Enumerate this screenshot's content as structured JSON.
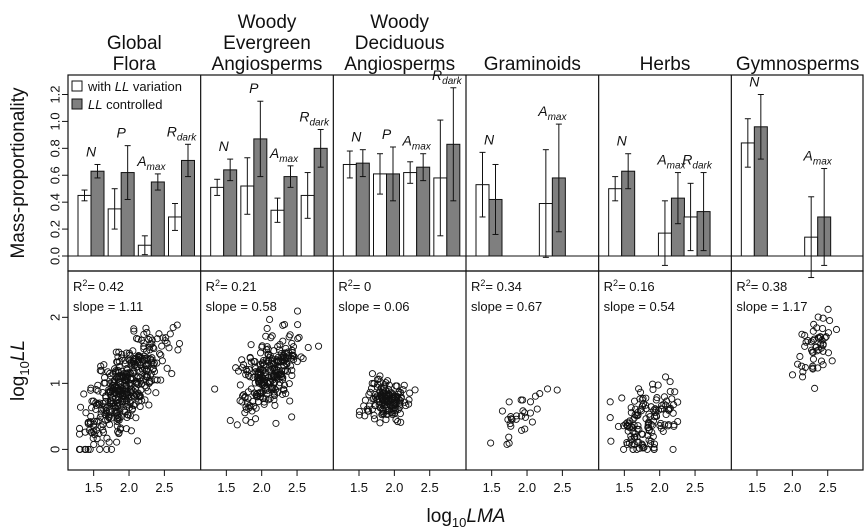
{
  "chart_data": {
    "type": "bar",
    "y_axis_top_label": "Mass-proportionality",
    "y_axis_bottom_label": {
      "base": "log",
      "sub": "10",
      "main": "LL"
    },
    "x_axis_label": {
      "base": "log",
      "sub": "10",
      "main": "LMA"
    },
    "legend": [
      {
        "prefix": "with ",
        "italic": "LL",
        "suffix": " variation",
        "fill": "#ffffff"
      },
      {
        "prefix": "",
        "italic": "LL",
        "suffix": " controlled",
        "fill": "#7f7f7f"
      }
    ],
    "top_y_ticks": [
      "0.0",
      "0.2",
      "0.4",
      "0.6",
      "0.8",
      "1.0",
      "1.2"
    ],
    "top_ylim": [
      0,
      1.33
    ],
    "bottom_y_ticks": [
      "0",
      "1",
      "2"
    ],
    "bottom_ylim": [
      -0.1,
      2.55
    ],
    "x_ticks": [
      "1.5",
      "2.0",
      "2.5"
    ],
    "xlim": [
      1.25,
      2.9
    ],
    "panels": [
      {
        "title": [
          "Global",
          "Flora"
        ],
        "bars": [
          {
            "label": "N",
            "sub": "",
            "with": 0.45,
            "with_err": 0.04,
            "controlled": 0.63,
            "controlled_err": 0.05
          },
          {
            "label": "P",
            "sub": "",
            "with": 0.35,
            "with_err": 0.15,
            "controlled": 0.62,
            "controlled_err": 0.2
          },
          {
            "label": "A",
            "sub": "max",
            "with": 0.08,
            "with_err": 0.07,
            "controlled": 0.55,
            "controlled_err": 0.06
          },
          {
            "label": "R",
            "sub": "dark",
            "with": 0.29,
            "with_err": 0.1,
            "controlled": 0.71,
            "controlled_err": 0.12
          }
        ],
        "r2": "0.42",
        "slope": "1.11",
        "scatter": {
          "n": 420,
          "mx": 1.92,
          "sx": 0.28,
          "slope": 1.11,
          "intercept": -1.22,
          "noise": 0.3
        }
      },
      {
        "title": [
          "Woody",
          "Evergreen",
          "Angiosperms"
        ],
        "bars": [
          {
            "label": "N",
            "sub": "",
            "with": 0.51,
            "with_err": 0.06,
            "controlled": 0.64,
            "controlled_err": 0.08
          },
          {
            "label": "P",
            "sub": "",
            "with": 0.52,
            "with_err": 0.21,
            "controlled": 0.87,
            "controlled_err": 0.28
          },
          {
            "label": "A",
            "sub": "max",
            "with": 0.34,
            "with_err": 0.09,
            "controlled": 0.59,
            "controlled_err": 0.08
          },
          {
            "label": "R",
            "sub": "dark",
            "with": 0.45,
            "with_err": 0.17,
            "controlled": 0.8,
            "controlled_err": 0.14
          }
        ],
        "r2": "0.21",
        "slope": "0.58",
        "scatter": {
          "n": 260,
          "mx": 2.1,
          "sx": 0.22,
          "slope": 0.58,
          "intercept": -0.05,
          "noise": 0.27
        }
      },
      {
        "title": [
          "Woody",
          "Deciduous",
          "Angiosperms"
        ],
        "bars": [
          {
            "label": "N",
            "sub": "",
            "with": 0.68,
            "with_err": 0.1,
            "controlled": 0.69,
            "controlled_err": 0.1
          },
          {
            "label": "P",
            "sub": "",
            "with": 0.61,
            "with_err": 0.15,
            "controlled": 0.61,
            "controlled_err": 0.2
          },
          {
            "label": "A",
            "sub": "max",
            "with": 0.62,
            "with_err": 0.08,
            "controlled": 0.66,
            "controlled_err": 0.1
          },
          {
            "label": "R",
            "sub": "dark",
            "with": 0.58,
            "with_err": 0.43,
            "controlled": 0.83,
            "controlled_err": 0.42
          }
        ],
        "r2": "0",
        "slope": "0.06",
        "scatter": {
          "n": 150,
          "mx": 1.88,
          "sx": 0.14,
          "slope": 0.06,
          "intercept": 0.62,
          "noise": 0.17
        }
      },
      {
        "title": [
          "Graminoids"
        ],
        "bars": [
          {
            "label": "N",
            "sub": "",
            "with": 0.53,
            "with_err": 0.24,
            "controlled": 0.42,
            "controlled_err": 0.26
          },
          {
            "label": "A",
            "sub": "max",
            "with": 0.39,
            "with_err": 0.4,
            "controlled": 0.58,
            "controlled_err": 0.4
          }
        ],
        "r2": "0.34",
        "slope": "0.67",
        "scatter": {
          "n": 30,
          "mx": 1.85,
          "sx": 0.2,
          "slope": 0.67,
          "intercept": -0.75,
          "noise": 0.18
        }
      },
      {
        "title": [
          "Herbs"
        ],
        "bars": [
          {
            "label": "N",
            "sub": "",
            "with": 0.5,
            "with_err": 0.09,
            "controlled": 0.63,
            "controlled_err": 0.13
          },
          {
            "label": "A",
            "sub": "max",
            "with": 0.17,
            "with_err": 0.24,
            "controlled": 0.43,
            "controlled_err": 0.19
          },
          {
            "label": "R",
            "sub": "dark",
            "with": 0.29,
            "with_err": 0.25,
            "controlled": 0.33,
            "controlled_err": 0.29
          }
        ],
        "r2": "0.16",
        "slope": "0.54",
        "scatter": {
          "n": 140,
          "mx": 1.82,
          "sx": 0.22,
          "slope": 0.54,
          "intercept": -0.55,
          "noise": 0.27
        }
      },
      {
        "title": [
          "Gymnosperms"
        ],
        "bars": [
          {
            "label": "N",
            "sub": "",
            "with": 0.84,
            "with_err": 0.18,
            "controlled": 0.96,
            "controlled_err": 0.24
          },
          {
            "label": "A",
            "sub": "max",
            "with": 0.14,
            "with_err": 0.3,
            "controlled": 0.29,
            "controlled_err": 0.36
          }
        ],
        "r2": "0.38",
        "slope": "1.17",
        "scatter": {
          "n": 55,
          "mx": 2.38,
          "sx": 0.14,
          "slope": 1.17,
          "intercept": -1.2,
          "noise": 0.22
        }
      }
    ]
  }
}
